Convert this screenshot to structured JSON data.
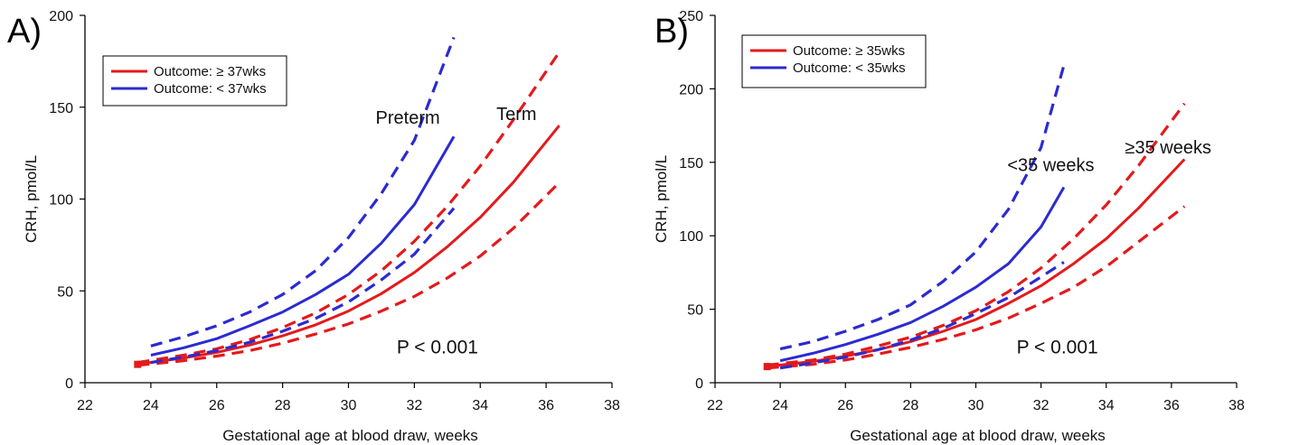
{
  "chart_data": [
    {
      "panel_label": "A)",
      "type": "line",
      "xlabel": "Gestational age at blood draw, weeks",
      "ylabel": "CRH, pmol/L",
      "xlim": [
        22,
        38
      ],
      "ylim": [
        0,
        200
      ],
      "xticks": [
        22,
        24,
        26,
        28,
        30,
        32,
        34,
        36,
        38
      ],
      "yticks": [
        0,
        50,
        100,
        150,
        200
      ],
      "legend": {
        "placement": "top-left",
        "entries": [
          {
            "label": "Outcome: ≥ 37wks",
            "color": "#e31a1c"
          },
          {
            "label": "Outcome: < 37wks",
            "color": "#2b2bd1"
          }
        ]
      },
      "series": [
        {
          "group": "term",
          "style": "solid",
          "color": "#e31a1c",
          "x": [
            23.6,
            25,
            26,
            27,
            28,
            29,
            30,
            31,
            32,
            33,
            34,
            35,
            36.4
          ],
          "y": [
            10,
            13.5,
            16.5,
            20.5,
            25.5,
            31.5,
            39,
            48.5,
            60,
            74,
            90,
            109,
            140
          ]
        },
        {
          "group": "term",
          "style": "dashed",
          "color": "#e31a1c",
          "x": [
            23.6,
            25,
            26,
            27,
            28,
            29,
            30,
            31,
            32,
            33,
            34,
            35,
            36.4
          ],
          "y": [
            11,
            15,
            18.5,
            23.5,
            30,
            38,
            48,
            61,
            77,
            96,
            118,
            143,
            180
          ]
        },
        {
          "group": "term",
          "style": "dashed",
          "color": "#e31a1c",
          "x": [
            23.6,
            25,
            26,
            27,
            28,
            29,
            30,
            31,
            32,
            33,
            34,
            35,
            36.4
          ],
          "y": [
            9.5,
            12,
            14.5,
            17.5,
            21.5,
            26.5,
            32,
            39,
            47,
            57,
            69,
            84,
            109
          ]
        },
        {
          "group": "preterm",
          "style": "solid",
          "color": "#2b2bd1",
          "x": [
            24,
            25,
            26,
            27,
            28,
            29,
            30,
            31,
            32,
            33.2
          ],
          "y": [
            15,
            19,
            24,
            31,
            38.5,
            48,
            59,
            76,
            97,
            134
          ]
        },
        {
          "group": "preterm",
          "style": "dashed",
          "color": "#2b2bd1",
          "x": [
            24,
            25,
            26,
            27,
            28,
            29,
            30,
            31,
            32,
            33.2
          ],
          "y": [
            20,
            25,
            31,
            38.5,
            48,
            61,
            79,
            103,
            132,
            188
          ]
        },
        {
          "group": "preterm",
          "style": "dashed",
          "color": "#2b2bd1",
          "x": [
            24,
            25,
            26,
            27,
            28,
            29,
            30,
            31,
            32,
            33.2
          ],
          "y": [
            11,
            14,
            17.5,
            22,
            28,
            35,
            44,
            56,
            70,
            95
          ]
        }
      ],
      "annotations": [
        {
          "text": "Preterm",
          "x": 31.8,
          "y": 141
        },
        {
          "text": "Term",
          "x": 35.1,
          "y": 143
        },
        {
          "text": "P < 0.001",
          "x": 32.7,
          "y": 16
        }
      ]
    },
    {
      "panel_label": "B)",
      "type": "line",
      "xlabel": "Gestational age at blood draw, weeks",
      "ylabel": "CRH, pmol/L",
      "xlim": [
        22,
        38
      ],
      "ylim": [
        0,
        250
      ],
      "xticks": [
        22,
        24,
        26,
        28,
        30,
        32,
        34,
        36,
        38
      ],
      "yticks": [
        0,
        50,
        100,
        150,
        200,
        250
      ],
      "legend": {
        "placement": "top-left",
        "entries": [
          {
            "label": "Outcome: ≥ 35wks",
            "color": "#e31a1c"
          },
          {
            "label": "Outcome: < 35wks",
            "color": "#2b2bd1"
          }
        ]
      },
      "series": [
        {
          "group": "term",
          "style": "solid",
          "color": "#e31a1c",
          "x": [
            23.6,
            25,
            26,
            27,
            28,
            29,
            30,
            31,
            32,
            33,
            34,
            35,
            36.4
          ],
          "y": [
            11,
            14.5,
            18,
            22.5,
            28,
            35,
            43,
            54,
            66,
            81,
            98,
            119,
            152
          ]
        },
        {
          "group": "term",
          "style": "dashed",
          "color": "#e31a1c",
          "x": [
            23.6,
            25,
            26,
            27,
            28,
            29,
            30,
            31,
            32,
            33,
            34,
            35,
            36.4
          ],
          "y": [
            12,
            15.5,
            19.5,
            25,
            31,
            39,
            49,
            62,
            78,
            98,
            121,
            148,
            190
          ]
        },
        {
          "group": "term",
          "style": "dashed",
          "color": "#e31a1c",
          "x": [
            23.6,
            25,
            26,
            27,
            28,
            29,
            30,
            31,
            32,
            33,
            34,
            35,
            36.4
          ],
          "y": [
            10,
            12.5,
            15.5,
            19.5,
            24,
            29.5,
            36,
            44,
            54,
            65,
            79,
            96,
            120
          ]
        },
        {
          "group": "preterm",
          "style": "solid",
          "color": "#2b2bd1",
          "x": [
            24,
            25,
            26,
            27,
            28,
            29,
            30,
            31,
            32,
            32.7
          ],
          "y": [
            15,
            20,
            26,
            33,
            41,
            52,
            65,
            81,
            106,
            133
          ]
        },
        {
          "group": "preterm",
          "style": "dashed",
          "color": "#2b2bd1",
          "x": [
            24,
            25,
            26,
            27,
            28,
            29,
            30,
            31,
            32,
            32.7
          ],
          "y": [
            23,
            28,
            35,
            43,
            53,
            69,
            89,
            118,
            160,
            216
          ]
        },
        {
          "group": "preterm",
          "style": "dashed",
          "color": "#2b2bd1",
          "x": [
            24,
            25,
            26,
            27,
            28,
            29,
            30,
            31,
            32,
            32.7
          ],
          "y": [
            10,
            13.5,
            17.5,
            22.5,
            29,
            37,
            47,
            58,
            72,
            82
          ]
        }
      ],
      "annotations": [
        {
          "text": "<35 weeks",
          "x": 32.3,
          "y": 144
        },
        {
          "text": "≥35 weeks",
          "x": 35.9,
          "y": 156
        },
        {
          "text": "P < 0.001",
          "x": 32.5,
          "y": 20
        }
      ]
    }
  ]
}
